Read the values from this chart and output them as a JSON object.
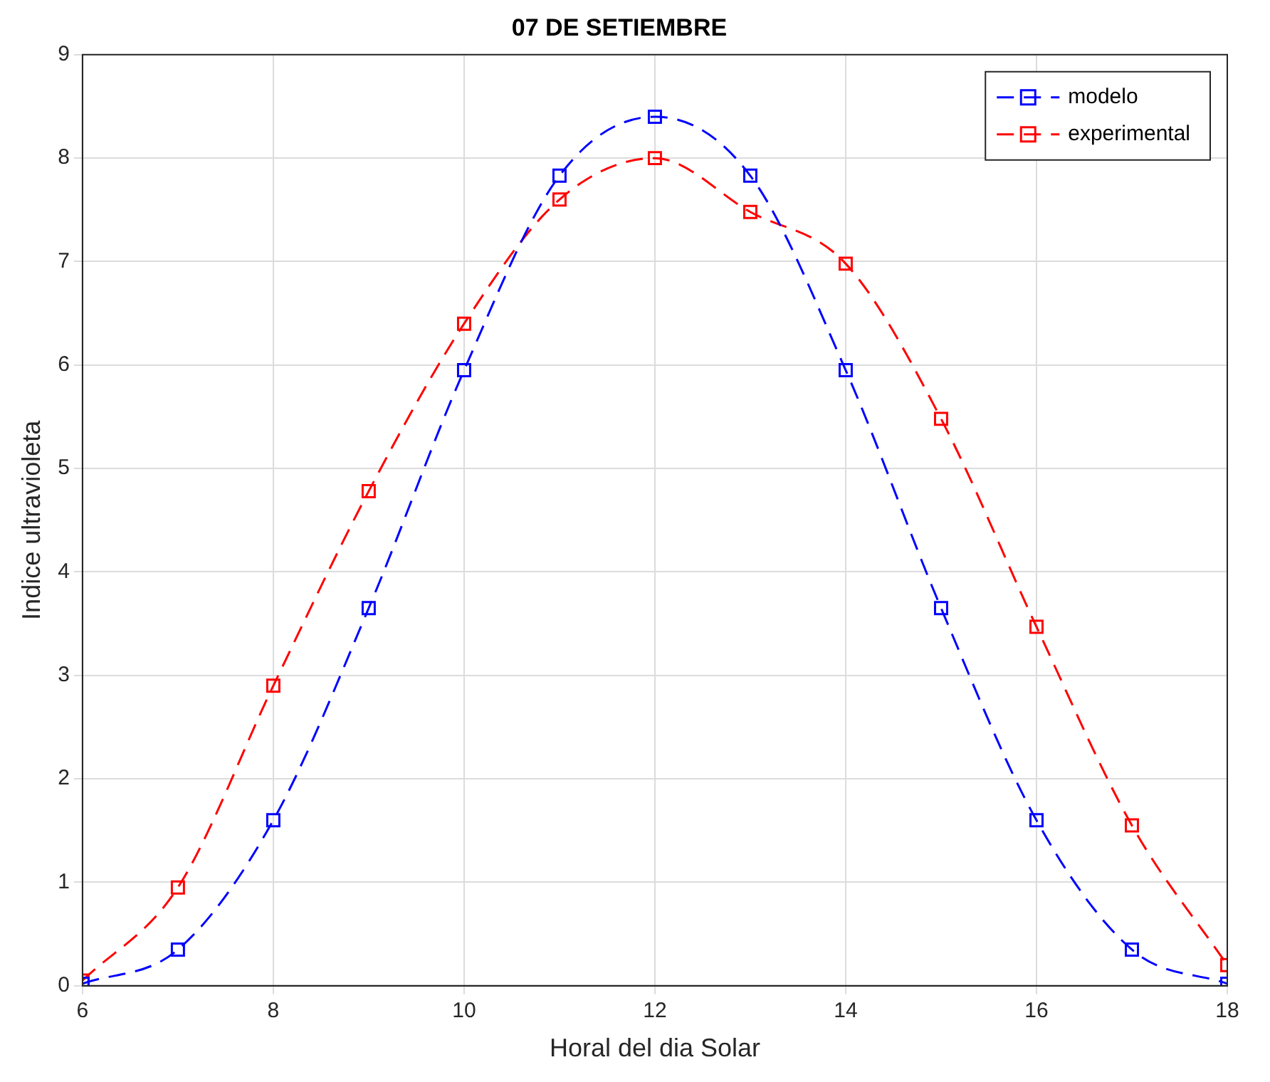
{
  "chart_data": {
    "type": "line",
    "title": "07 DE SETIEMBRE",
    "xlabel": "Horal del dia Solar",
    "ylabel": "Indice ultravioleta",
    "x": [
      6,
      7,
      8,
      9,
      10,
      11,
      12,
      13,
      14,
      15,
      16,
      17,
      18
    ],
    "series": [
      {
        "name": "modelo",
        "color": "#0000ff",
        "values": [
          0.02,
          0.35,
          1.6,
          3.65,
          5.95,
          7.83,
          8.4,
          7.83,
          5.95,
          3.65,
          1.6,
          0.35,
          0.02
        ]
      },
      {
        "name": "experimental",
        "color": "#ff0000",
        "values": [
          0.05,
          0.95,
          2.9,
          4.78,
          6.4,
          7.6,
          8.0,
          7.48,
          6.98,
          5.48,
          3.47,
          1.55,
          0.2
        ]
      }
    ],
    "xlim": [
      6,
      18
    ],
    "xticks": [
      6,
      8,
      10,
      12,
      14,
      16,
      18
    ],
    "ylim": [
      0,
      9
    ],
    "yticks": [
      0,
      1,
      2,
      3,
      4,
      5,
      6,
      7,
      8,
      9
    ],
    "grid": true,
    "legend": "top right",
    "marker": "square",
    "line_style": "dashed"
  }
}
